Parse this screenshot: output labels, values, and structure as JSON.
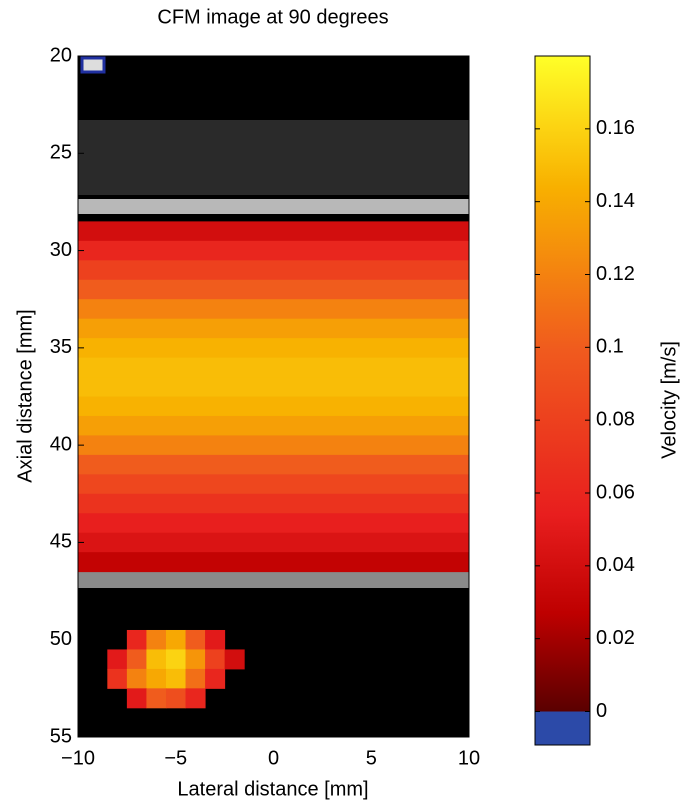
{
  "chart_data": {
    "type": "heatmap",
    "title": "CFM image at 90 degrees",
    "x_label": "Lateral distance [mm]",
    "y_label": "Axial distance [mm]",
    "xlim": [
      -10,
      10
    ],
    "xticks": [
      {
        "value": -10,
        "label": "−10"
      },
      {
        "value": -5,
        "label": "−5"
      },
      0,
      5,
      10
    ],
    "ylim": [
      20,
      55
    ],
    "yticks": [
      20,
      25,
      30,
      35,
      40,
      45,
      50,
      55
    ],
    "y_inverted": true,
    "colorbar_label": "Velocity [m/s]",
    "clim": [
      -0.0092,
      0.18
    ],
    "cticks": [
      0,
      0.02,
      0.04,
      0.06,
      0.08,
      0.1,
      0.12,
      0.14,
      0.16
    ],
    "profile": {
      "y": [
        29,
        30,
        31,
        32,
        33,
        34,
        35,
        36,
        37,
        38,
        39,
        40,
        41,
        42,
        43,
        44,
        45,
        46
      ],
      "values": [
        0.04,
        0.06,
        0.08,
        0.1,
        0.12,
        0.135,
        0.145,
        0.15,
        0.15,
        0.145,
        0.135,
        0.12,
        0.1,
        0.085,
        0.07,
        0.055,
        0.045,
        0.03
      ]
    },
    "blob": {
      "x": [
        -7,
        -6,
        -5,
        -4,
        -3,
        -8,
        -7,
        -6,
        -5,
        -4,
        -3,
        -2,
        -8,
        -7,
        -6,
        -5,
        -4,
        -3,
        -7,
        -6,
        -5,
        -4
      ],
      "y": [
        50,
        50,
        50,
        50,
        50,
        51,
        51,
        51,
        51,
        51,
        51,
        51,
        52,
        52,
        52,
        52,
        52,
        52,
        53,
        53,
        53,
        53
      ],
      "values": [
        0.06,
        0.12,
        0.14,
        0.1,
        0.05,
        0.05,
        0.1,
        0.15,
        0.16,
        0.13,
        0.08,
        0.04,
        0.07,
        0.12,
        0.14,
        0.15,
        0.11,
        0.06,
        0.05,
        0.1,
        0.09,
        0.06
      ]
    }
  }
}
